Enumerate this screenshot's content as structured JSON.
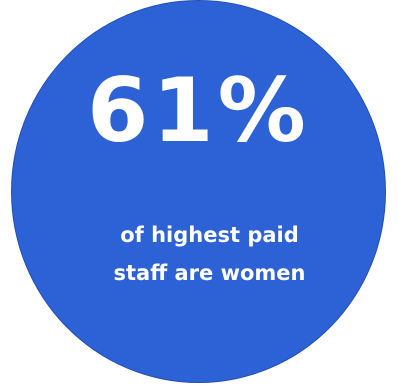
{
  "stat": {
    "value": "61%",
    "caption": "of highest paid staff are women"
  },
  "colors": {
    "circle_fill": "#2c62d5",
    "text": "#ffffff",
    "background": "#ffffff"
  }
}
